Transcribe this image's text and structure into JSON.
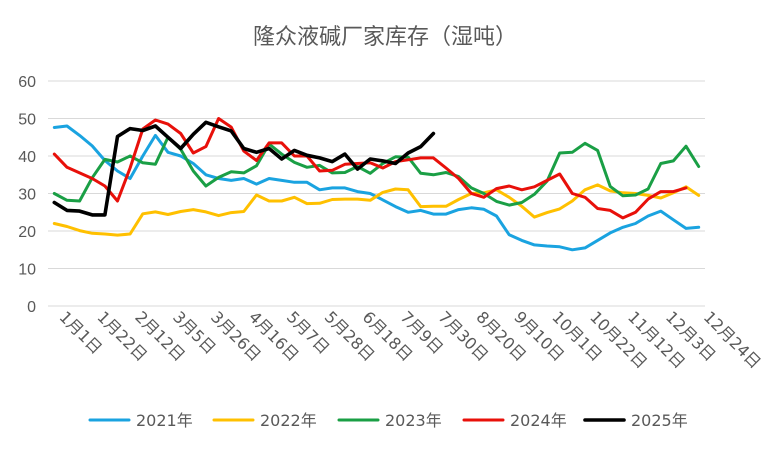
{
  "chart_data": {
    "type": "line",
    "title": "隆众液碱厂家库存（湿吨）",
    "xlabel": "",
    "ylabel": "",
    "ylim": [
      0,
      60
    ],
    "y_ticks": [
      0,
      10,
      20,
      30,
      40,
      50,
      60
    ],
    "grid": true,
    "legend_position": "bottom",
    "x_tick_labels": [
      "1月1日",
      "1月22日",
      "2月12日",
      "3月5日",
      "3月26日",
      "4月16日",
      "5月7日",
      "5月28日",
      "6月18日",
      "7月9日",
      "7月30日",
      "8月20日",
      "9月10日",
      "10月1日",
      "10月22日",
      "11月12日",
      "12月3日",
      "12月24日"
    ],
    "series": [
      {
        "name": "2021年",
        "color": "#1aa3e0",
        "values": [
          47.6,
          48.0,
          45.5,
          42.7,
          38.8,
          36.0,
          34.0,
          40.0,
          45.5,
          41.0,
          40.0,
          38.0,
          35.0,
          34.0,
          33.5,
          34.0,
          32.5,
          34.0,
          33.5,
          33.0,
          33.0,
          31.0,
          31.5,
          31.5,
          30.5,
          30.0,
          28.3,
          26.5,
          25.0,
          25.5,
          24.5,
          24.5,
          25.7,
          26.2,
          25.8,
          24.0,
          19.0,
          17.5,
          16.3,
          16.0,
          15.8,
          15.0,
          15.5,
          17.5,
          19.5,
          21.0,
          22.0,
          24.0,
          25.3,
          23.0,
          20.7,
          21.0
        ]
      },
      {
        "name": "2022年",
        "color": "#ffc000",
        "values": [
          22.0,
          21.2,
          20.1,
          19.4,
          19.2,
          18.9,
          19.2,
          24.6,
          25.1,
          24.4,
          25.2,
          25.7,
          25.1,
          24.1,
          24.9,
          25.2,
          29.6,
          28.0,
          28.0,
          29.0,
          27.3,
          27.4,
          28.4,
          28.5,
          28.5,
          28.2,
          30.3,
          31.2,
          31.0,
          26.5,
          26.6,
          26.6,
          28.4,
          30.0,
          30.2,
          31.0,
          29.0,
          26.6,
          23.7,
          24.9,
          25.9,
          28.0,
          31.0,
          32.3,
          30.7,
          30.2,
          30.0,
          29.5,
          28.8,
          30.2,
          31.8,
          29.5
        ]
      },
      {
        "name": "2023年",
        "color": "#1a9f45",
        "values": [
          30.0,
          28.2,
          28.0,
          34.2,
          39.1,
          38.4,
          40.0,
          38.2,
          37.8,
          45.0,
          41.8,
          36.0,
          32.0,
          34.3,
          35.8,
          35.5,
          37.4,
          43.2,
          40.5,
          38.3,
          37.0,
          37.5,
          35.5,
          35.6,
          37.2,
          35.4,
          38.0,
          39.8,
          39.7,
          35.4,
          35.0,
          35.6,
          34.5,
          31.5,
          30.0,
          27.9,
          26.9,
          27.6,
          29.8,
          33.3,
          40.8,
          41.0,
          43.4,
          41.5,
          31.9,
          29.4,
          29.6,
          31.2,
          38.0,
          38.7,
          42.6,
          37.2
        ]
      },
      {
        "name": "2024年",
        "color": "#e8100a",
        "values": [
          40.5,
          37.0,
          35.5,
          34.0,
          32.0,
          28.0,
          36.8,
          47.2,
          49.6,
          48.5,
          46.0,
          40.8,
          42.5,
          50.0,
          47.7,
          41.3,
          38.8,
          43.5,
          43.5,
          40.0,
          40.0,
          36.0,
          36.2,
          37.8,
          38.0,
          38.2,
          36.8,
          38.5,
          39.0,
          39.5,
          39.5,
          36.8,
          34.0,
          30.0,
          29.0,
          31.3,
          32.0,
          31.0,
          31.8,
          33.5,
          35.2,
          30.0,
          29.0,
          26.0,
          25.5,
          23.5,
          25.0,
          28.5,
          30.5,
          30.5,
          31.5
        ]
      },
      {
        "name": "2025年",
        "color": "#000000",
        "values": [
          27.6,
          25.5,
          25.3,
          24.3,
          24.3,
          45.2,
          47.3,
          46.8,
          48.0,
          45.0,
          42.0,
          45.8,
          49.0,
          47.8,
          46.7,
          42.0,
          41.0,
          42.0,
          39.2,
          41.5,
          40.2,
          39.5,
          38.5,
          40.5,
          36.5,
          39.2,
          38.7,
          38.0,
          40.8,
          42.5,
          46.0
        ]
      }
    ]
  }
}
